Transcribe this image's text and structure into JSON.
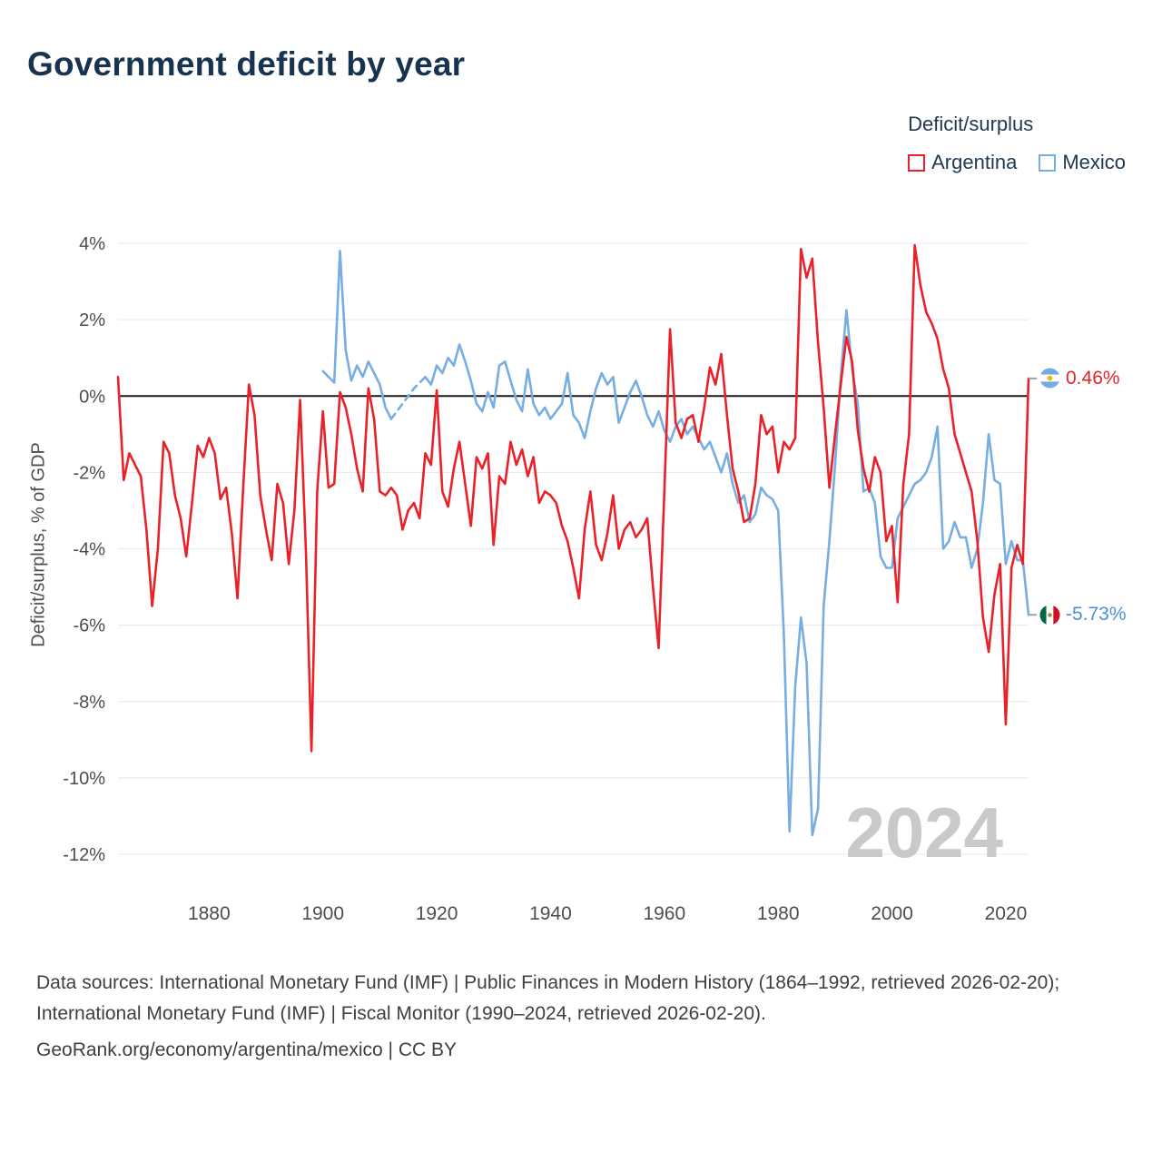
{
  "title": "Government deficit by year",
  "legend": {
    "title": "Deficit/surplus",
    "entries": [
      {
        "label": "Argentina",
        "color": "#ea2128"
      },
      {
        "label": "Mexico",
        "color": "#76ade2"
      }
    ]
  },
  "end_labels": {
    "argentina": {
      "value": "0.46%",
      "color": "#ea2128",
      "flag": "argentina-flag"
    },
    "mexico": {
      "value": "-5.73%",
      "color": "#4a90d6",
      "flag": "mexico-flag"
    }
  },
  "footer": {
    "sources": "Data sources: International Monetary Fund (IMF) | Public Finances in Modern History (1864–1992, retrieved 2026-02-20); International Monetary Fund (IMF) | Fiscal Monitor (1990–2024, retrieved 2026-02-20).",
    "attribution": "GeoRank.org/economy/argentina/mexico | CC BY"
  },
  "chart_data": {
    "type": "line",
    "title": "Government deficit by year",
    "xlabel": "",
    "ylabel": "Deficit/surplus, % of GDP",
    "x_start": 1864,
    "x_end": 2024,
    "ylim": [
      -12,
      4
    ],
    "y_ticks": [
      4,
      2,
      0,
      -2,
      -4,
      -6,
      -8,
      -10,
      -12
    ],
    "x_ticks": [
      1880,
      1900,
      1920,
      1940,
      1960,
      1980,
      2000,
      2020
    ],
    "grid": true,
    "legend_position": "top-right",
    "watermark": "2024",
    "series": [
      {
        "name": "Argentina",
        "color": "#ea2128",
        "start_year": 1864,
        "end_value_label": "0.46%",
        "values": [
          0.5,
          -2.2,
          -1.5,
          -1.8,
          -2.1,
          -3.5,
          -5.5,
          -4.0,
          -1.2,
          -1.5,
          -2.6,
          -3.2,
          -4.2,
          -2.8,
          -1.3,
          -1.6,
          -1.1,
          -1.5,
          -2.7,
          -2.4,
          -3.6,
          -5.3,
          -2.4,
          0.3,
          -0.5,
          -2.6,
          -3.5,
          -4.3,
          -2.3,
          -2.8,
          -4.4,
          -3.0,
          -0.1,
          -4.0,
          -9.3,
          -2.5,
          -0.4,
          -2.4,
          -2.3,
          0.1,
          -0.3,
          -1.0,
          -1.9,
          -2.5,
          0.2,
          -0.6,
          -2.5,
          -2.6,
          -2.4,
          -2.6,
          -3.5,
          -3.0,
          -2.8,
          -3.2,
          -1.5,
          -1.8,
          0.15,
          -2.5,
          -2.9,
          -1.9,
          -1.2,
          -2.3,
          -3.4,
          -1.6,
          -1.9,
          -1.5,
          -3.9,
          -2.1,
          -2.3,
          -1.2,
          -1.8,
          -1.4,
          -2.1,
          -1.6,
          -2.8,
          -2.5,
          -2.6,
          -2.8,
          -3.4,
          -3.8,
          -4.5,
          -5.3,
          -3.5,
          -2.5,
          -3.9,
          -4.3,
          -3.6,
          -2.6,
          -4.0,
          -3.5,
          -3.3,
          -3.7,
          -3.5,
          -3.2,
          -5.0,
          -6.6,
          -2.5,
          1.75,
          -0.7,
          -1.1,
          -0.6,
          -0.5,
          -1.2,
          -0.3,
          0.75,
          0.3,
          1.1,
          -0.5,
          -1.9,
          -2.5,
          -3.3,
          -3.2,
          -2.3,
          -0.5,
          -1.0,
          -0.8,
          -2.0,
          -1.2,
          -1.4,
          -1.1,
          3.85,
          3.1,
          3.6,
          1.4,
          -0.3,
          -2.4,
          -1.0,
          0.3,
          1.55,
          0.9,
          -0.9,
          -1.9,
          -2.5,
          -1.6,
          -2.0,
          -3.8,
          -3.4,
          -5.4,
          -2.3,
          -1.0,
          3.95,
          2.9,
          2.2,
          1.9,
          1.5,
          0.7,
          0.2,
          -1.0,
          -1.5,
          -2.0,
          -2.5,
          -3.8,
          -5.8,
          -6.7,
          -5.2,
          -4.4,
          -8.6,
          -4.5,
          -3.9,
          -4.4,
          0.46
        ]
      },
      {
        "name": "Mexico",
        "color": "#76ade2",
        "start_year": 1900,
        "dashed_range": [
          1912,
          1918
        ],
        "end_value_label": "-5.73%",
        "values": [
          0.65,
          0.5,
          0.35,
          3.8,
          1.2,
          0.4,
          0.8,
          0.5,
          0.9,
          0.6,
          0.3,
          -0.3,
          -0.6,
          -0.4,
          -0.2,
          0.0,
          0.2,
          0.35,
          0.5,
          0.3,
          0.8,
          0.6,
          1.0,
          0.8,
          1.35,
          0.9,
          0.4,
          -0.2,
          -0.4,
          0.1,
          -0.3,
          0.8,
          0.9,
          0.4,
          -0.1,
          -0.4,
          0.7,
          -0.2,
          -0.5,
          -0.3,
          -0.6,
          -0.4,
          -0.2,
          0.6,
          -0.5,
          -0.7,
          -1.1,
          -0.4,
          0.2,
          0.6,
          0.3,
          0.5,
          -0.7,
          -0.3,
          0.1,
          0.4,
          0.0,
          -0.5,
          -0.8,
          -0.4,
          -0.9,
          -1.2,
          -0.8,
          -0.6,
          -1.0,
          -0.8,
          -1.1,
          -1.4,
          -1.2,
          -1.6,
          -2.0,
          -1.5,
          -2.3,
          -2.8,
          -2.6,
          -3.3,
          -3.1,
          -2.4,
          -2.6,
          -2.7,
          -3.0,
          -6.2,
          -11.4,
          -7.6,
          -5.8,
          -7.0,
          -11.5,
          -10.8,
          -5.5,
          -3.8,
          -1.8,
          0.5,
          2.25,
          0.7,
          -0.2,
          -2.5,
          -2.4,
          -2.8,
          -4.2,
          -4.5,
          -4.5,
          -3.2,
          -2.9,
          -2.6,
          -2.3,
          -2.2,
          -2.0,
          -1.6,
          -0.8,
          -4.0,
          -3.8,
          -3.3,
          -3.7,
          -3.7,
          -4.5,
          -4.0,
          -2.8,
          -1.0,
          -2.2,
          -2.3,
          -4.4,
          -3.8,
          -4.3,
          -4.3,
          -5.73
        ]
      }
    ]
  }
}
